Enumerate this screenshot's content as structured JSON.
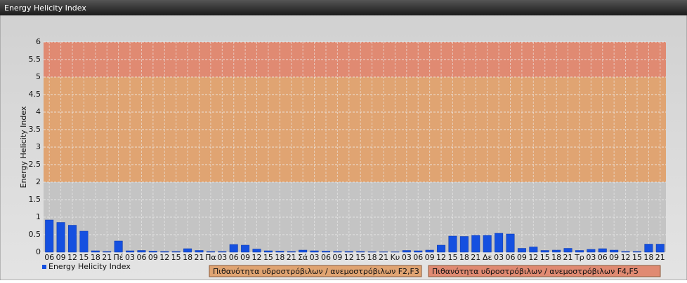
{
  "chart_data": {
    "type": "bar",
    "title": "Energy Helicity Index",
    "y_label": "Energy Helicity Index",
    "categories": [
      "06",
      "09",
      "12",
      "15",
      "18",
      "21",
      "Πέ",
      "03",
      "06",
      "09",
      "12",
      "15",
      "18",
      "21",
      "Πα",
      "03",
      "06",
      "09",
      "12",
      "15",
      "18",
      "21",
      "Σά",
      "03",
      "06",
      "09",
      "12",
      "15",
      "18",
      "21",
      "Κυ",
      "03",
      "06",
      "09",
      "12",
      "15",
      "18",
      "21",
      "Δε",
      "03",
      "06",
      "09",
      "12",
      "15",
      "18",
      "21",
      "Τρ",
      "03",
      "06",
      "09",
      "12",
      "15",
      "18",
      "21"
    ],
    "series": [
      {
        "name": "Energy Helicity Index",
        "color": "#1550e0",
        "values": [
          0.92,
          0.85,
          0.77,
          0.6,
          0.04,
          0.02,
          0.32,
          0.04,
          0.05,
          0.03,
          0.02,
          0.02,
          0.1,
          0.05,
          0.02,
          0.02,
          0.22,
          0.2,
          0.09,
          0.04,
          0.03,
          0.02,
          0.06,
          0.04,
          0.03,
          0.02,
          0.02,
          0.02,
          0.01,
          0.01,
          0.01,
          0.05,
          0.04,
          0.06,
          0.2,
          0.46,
          0.45,
          0.48,
          0.48,
          0.54,
          0.52,
          0.11,
          0.15,
          0.05,
          0.06,
          0.11,
          0.05,
          0.08,
          0.1,
          0.06,
          0.02,
          0.02,
          0.23,
          0.23
        ]
      }
    ],
    "bands": [
      {
        "from": 2,
        "to": 5,
        "color": "#e0a472",
        "label": "Πιθανότητα υδροστρόβιλων / ανεμοστρόβιλων F2,F3"
      },
      {
        "from": 5,
        "to": 6,
        "color": "#e08a72",
        "label": "Πιθανότητα υδροστρόβιλων / ανεμοστρόβιλων F4,F5"
      }
    ],
    "ylim": [
      0,
      6
    ],
    "yticks": [
      0,
      0.5,
      1,
      1.5,
      2,
      2.5,
      3,
      3.5,
      4,
      4.5,
      5,
      5.5,
      6
    ],
    "grid": true
  }
}
